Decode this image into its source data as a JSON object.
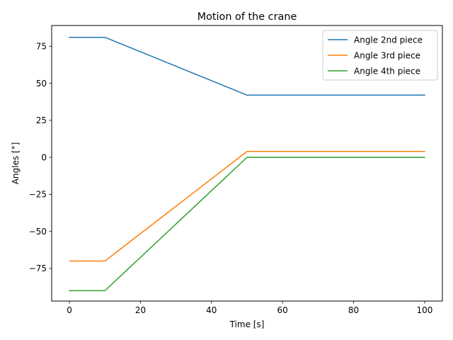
{
  "chart_data": {
    "type": "line",
    "title": "Motion of the crane",
    "xlabel": "Time [s]",
    "ylabel": "Angles [°]",
    "xlim": [
      -5,
      105
    ],
    "ylim": [
      -97,
      89
    ],
    "xticks": [
      0,
      20,
      40,
      60,
      80,
      100
    ],
    "yticks": [
      -75,
      -50,
      -25,
      0,
      25,
      50,
      75
    ],
    "grid": false,
    "legend_position": "top-right",
    "series": [
      {
        "name": "Angle 2nd piece",
        "color": "#1f77b4",
        "x": [
          0,
          10,
          50,
          100
        ],
        "y": [
          81,
          81,
          42,
          42
        ]
      },
      {
        "name": "Angle 3rd piece",
        "color": "#ff7f0e",
        "x": [
          0,
          10,
          50,
          100
        ],
        "y": [
          -70,
          -70,
          4,
          4
        ]
      },
      {
        "name": "Angle 4th piece",
        "color": "#2ca02c",
        "x": [
          0,
          10,
          50,
          100
        ],
        "y": [
          -90,
          -90,
          0,
          0
        ]
      }
    ]
  }
}
